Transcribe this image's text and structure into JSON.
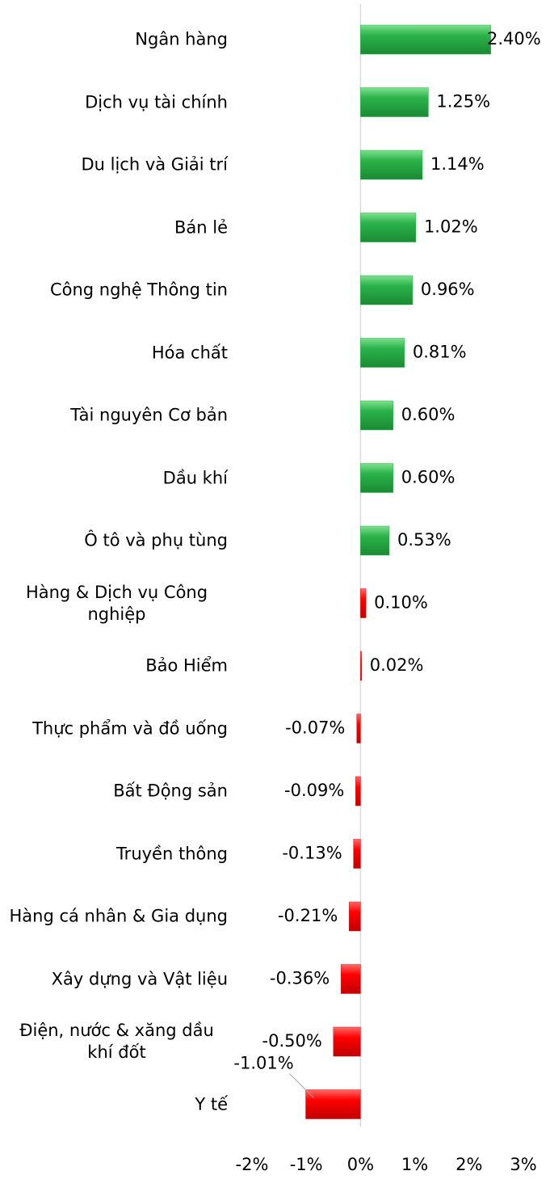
{
  "chart_data": {
    "type": "hbar",
    "categories": [
      "Ngân hàng",
      "Dịch vụ tài chính",
      "Du lịch và Giải trí",
      "Bán lẻ",
      "Công nghệ Thông tin",
      "Hóa chất",
      "Tài nguyên Cơ bản",
      "Dầu khí",
      "Ô tô và phụ tùng",
      "Hàng & Dịch vụ Công nghiệp",
      "Bảo Hiểm",
      "Thực phẩm và đồ uống",
      "Bất Động sản",
      "Truyền thông",
      "Hàng cá nhân & Gia dụng",
      "Xây dựng và Vật liệu",
      "Điện, nước & xăng dầu khí đốt",
      "Y tế"
    ],
    "values": [
      2.4,
      1.25,
      1.14,
      1.02,
      0.96,
      0.81,
      0.6,
      0.6,
      0.53,
      0.1,
      0.02,
      -0.07,
      -0.09,
      -0.13,
      -0.21,
      -0.36,
      -0.5,
      -1.01
    ],
    "value_labels": [
      "2.40%",
      "1.25%",
      "1.14%",
      "1.02%",
      "0.96%",
      "0.81%",
      "0.60%",
      "0.60%",
      "0.53%",
      "0.10%",
      "0.02%",
      "-0.07%",
      "-0.09%",
      "-0.13%",
      "-0.21%",
      "-0.36%",
      "-0.50%",
      "-1.01%"
    ],
    "colors": [
      "#2bb34a",
      "#2bb34a",
      "#2bb34a",
      "#2bb34a",
      "#2bb34a",
      "#2bb34a",
      "#2bb34a",
      "#2bb34a",
      "#2bb34a",
      "#ee1111",
      "#ee1111",
      "#ee1111",
      "#ee1111",
      "#ee1111",
      "#ee1111",
      "#ee1111",
      "#ee1111",
      "#ee1111"
    ],
    "xlim": [
      -2,
      3
    ],
    "xticks": [
      {
        "value": -2,
        "label": "-2%"
      },
      {
        "value": -1,
        "label": "-1%"
      },
      {
        "value": 0,
        "label": "0%"
      },
      {
        "value": 1,
        "label": "1%"
      },
      {
        "value": 2,
        "label": "2%"
      },
      {
        "value": 3,
        "label": "3%"
      }
    ]
  }
}
